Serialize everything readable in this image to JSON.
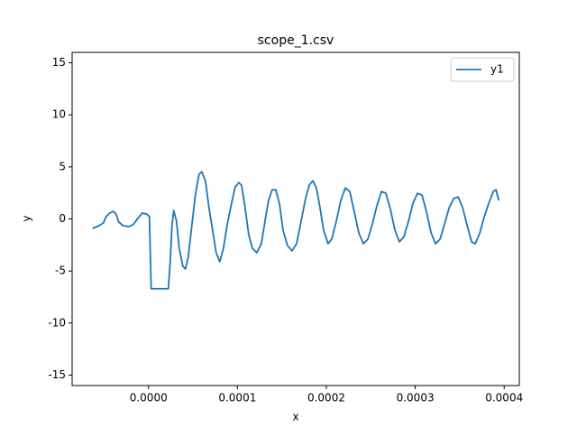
{
  "chart_data": {
    "type": "line",
    "title": "scope_1.csv",
    "x_label": "x",
    "y_label": "y",
    "x": [
      -6.29e-05,
      -5.58e-05,
      -5.08e-05,
      -4.77e-05,
      -4.37e-05,
      -3.96e-05,
      -3.65e-05,
      -3.35e-05,
      -2.84e-05,
      -2.23e-05,
      -1.73e-05,
      -1.22e-05,
      -7.1e-06,
      -2e-06,
      1e-06,
      3e-06,
      2.23e-05,
      2.44e-05,
      2.64e-05,
      2.84e-05,
      3.15e-05,
      3.45e-05,
      3.86e-05,
      4.16e-05,
      4.47e-05,
      4.87e-05,
      5.28e-05,
      5.68e-05,
      5.99e-05,
      6.4e-05,
      6.8e-05,
      7.21e-05,
      7.61e-05,
      8.02e-05,
      8.43e-05,
      8.83e-05,
      9.34e-05,
      9.75e-05,
      0.0001015,
      0.0001046,
      0.0001086,
      0.0001127,
      0.0001168,
      0.0001218,
      0.0001269,
      0.000131,
      0.000135,
      0.0001391,
      0.0001431,
      0.0001472,
      0.0001513,
      0.0001563,
      0.0001614,
      0.0001665,
      0.0001716,
      0.0001766,
      0.0001807,
      0.0001848,
      0.0001888,
      0.0001929,
      0.0001969,
      0.000202,
      0.0002061,
      0.0002112,
      0.0002162,
      0.0002213,
      0.0002264,
      0.0002315,
      0.0002365,
      0.0002416,
      0.0002467,
      0.0002518,
      0.0002568,
      0.0002619,
      0.000267,
      0.0002721,
      0.0002771,
      0.0002822,
      0.0002873,
      0.0002924,
      0.0002974,
      0.0003025,
      0.0003076,
      0.0003127,
      0.0003178,
      0.0003228,
      0.0003279,
      0.000333,
      0.0003381,
      0.0003431,
      0.0003482,
      0.0003533,
      0.0003584,
      0.0003634,
      0.0003675,
      0.0003726,
      0.0003776,
      0.0003827,
      0.0003878,
      0.0003908,
      0.0003939
    ],
    "series": [
      {
        "name": "y1",
        "color": "#1f77b4",
        "values": [
          -0.91,
          -0.65,
          -0.39,
          0.22,
          0.56,
          0.73,
          0.48,
          -0.3,
          -0.65,
          -0.73,
          -0.56,
          0.04,
          0.56,
          0.48,
          0.22,
          -6.7,
          -6.7,
          -4.11,
          -0.65,
          0.82,
          -0.22,
          -2.81,
          -4.54,
          -4.8,
          -3.67,
          -0.65,
          2.38,
          4.28,
          4.54,
          3.67,
          1.08,
          -1.08,
          -3.24,
          -4.11,
          -2.81,
          -0.65,
          1.51,
          3.07,
          3.5,
          3.24,
          1.08,
          -1.51,
          -2.81,
          -3.24,
          -2.38,
          -0.22,
          1.77,
          2.81,
          2.81,
          1.51,
          -1.08,
          -2.55,
          -3.07,
          -2.38,
          -0.22,
          1.94,
          3.24,
          3.67,
          2.98,
          1.08,
          -1.08,
          -2.38,
          -1.94,
          -0.22,
          1.77,
          2.98,
          2.64,
          0.65,
          -1.34,
          -2.38,
          -1.94,
          -0.48,
          1.25,
          2.64,
          2.46,
          0.91,
          -1.08,
          -2.2,
          -1.69,
          -0.22,
          1.51,
          2.46,
          2.29,
          0.65,
          -1.34,
          -2.38,
          -1.94,
          -0.48,
          1.08,
          1.94,
          2.12,
          1.08,
          -0.65,
          -2.2,
          -2.38,
          -1.34,
          0.22,
          1.51,
          2.64,
          2.81,
          1.77
        ]
      }
    ],
    "xlim": [
      -8.59e-05,
      0.000417
    ],
    "xticks": [
      {
        "value": 0,
        "label": "0.0000"
      },
      {
        "value": 0.0001,
        "label": "0.0001"
      },
      {
        "value": 0.0002,
        "label": "0.0002"
      },
      {
        "value": 0.0003,
        "label": "0.0003"
      },
      {
        "value": 0.0004,
        "label": "0.0004"
      }
    ],
    "ylim": [
      -16,
      16
    ],
    "yticks": [
      -15,
      -10,
      -5,
      0,
      5,
      10,
      15
    ],
    "grid": false,
    "legend": "upper right"
  }
}
